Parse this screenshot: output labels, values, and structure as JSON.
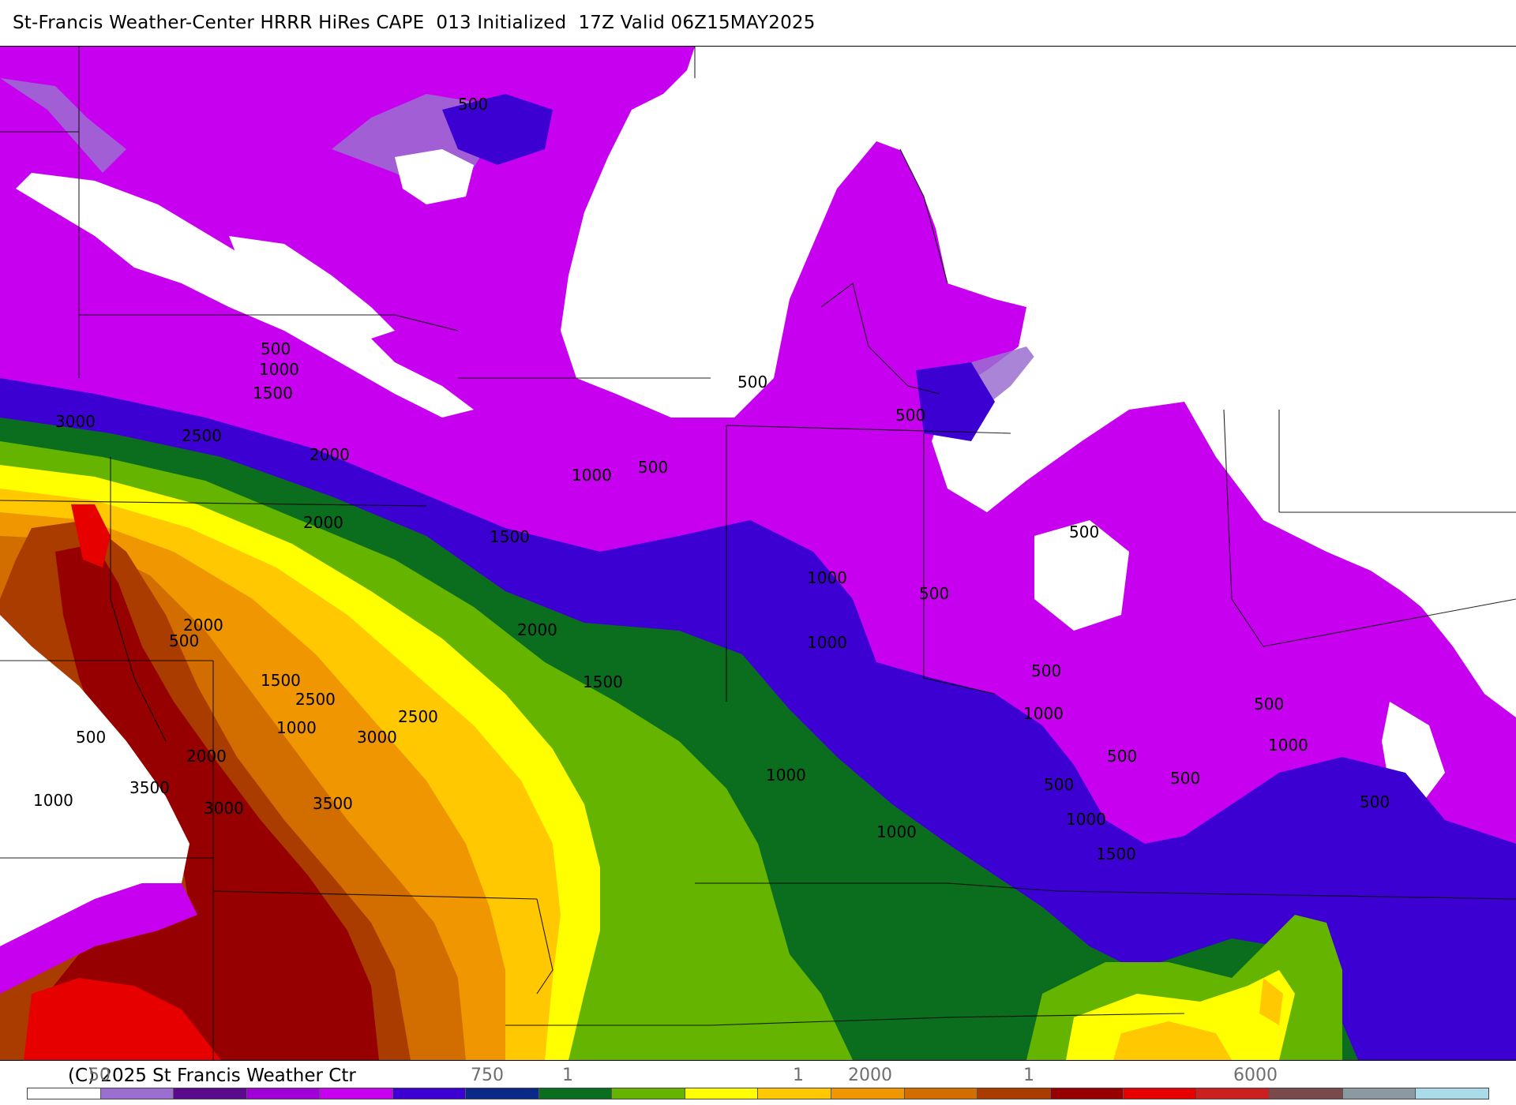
{
  "header": {
    "title": "St-Francis Weather-Center HRRR HiRes CAPE  013 Initialized  17Z Valid 06Z15MAY2025"
  },
  "map": {
    "field": "CAPE",
    "contour_labels": [
      "500",
      "500",
      "1000",
      "1500",
      "3000",
      "2500",
      "2000",
      "2000",
      "2000",
      "500",
      "1000",
      "1500",
      "1500",
      "2000",
      "500",
      "1500",
      "2500",
      "1000",
      "3000",
      "2500",
      "2000",
      "3500",
      "3000",
      "3500",
      "1000",
      "500",
      "1000",
      "500",
      "500",
      "500",
      "1000",
      "500",
      "1000",
      "1000",
      "500",
      "500",
      "1000",
      "500",
      "1000",
      "1000",
      "500",
      "500",
      "1500",
      "500"
    ],
    "colors": {
      "land": "#ffffff",
      "lavender": "#9b6fd0",
      "deep_purple": "#5a0a8c",
      "purple": "#a000d8",
      "magenta": "#c800f0",
      "blue_violet": "#3c00d2",
      "navy": "#0a2a8a",
      "dark_green": "#0a6e1e",
      "green": "#64b400",
      "yellow": "#ffff00",
      "gold": "#ffc800",
      "orange": "#f09600",
      "dark_orange": "#d26e00",
      "rust": "#aa3c00",
      "dark_red": "#960000",
      "red": "#e60000"
    }
  },
  "legend": {
    "credit": "(C) 2025 St Francis Weather Ctr",
    "tick_labels": [
      "50",
      "750",
      "1",
      "1",
      "2000",
      "1",
      "6000"
    ],
    "swatches": [
      "#ffffff",
      "#9b6fd0",
      "#5a0a8c",
      "#a000d8",
      "#c800f0",
      "#3c00d2",
      "#0a2a8a",
      "#0a6e1e",
      "#64b400",
      "#ffff00",
      "#ffc800",
      "#f09600",
      "#d26e00",
      "#aa3c00",
      "#960000",
      "#e60000",
      "#cc2020",
      "#7a4a4a",
      "#8a9aa0",
      "#aadbe8"
    ]
  }
}
